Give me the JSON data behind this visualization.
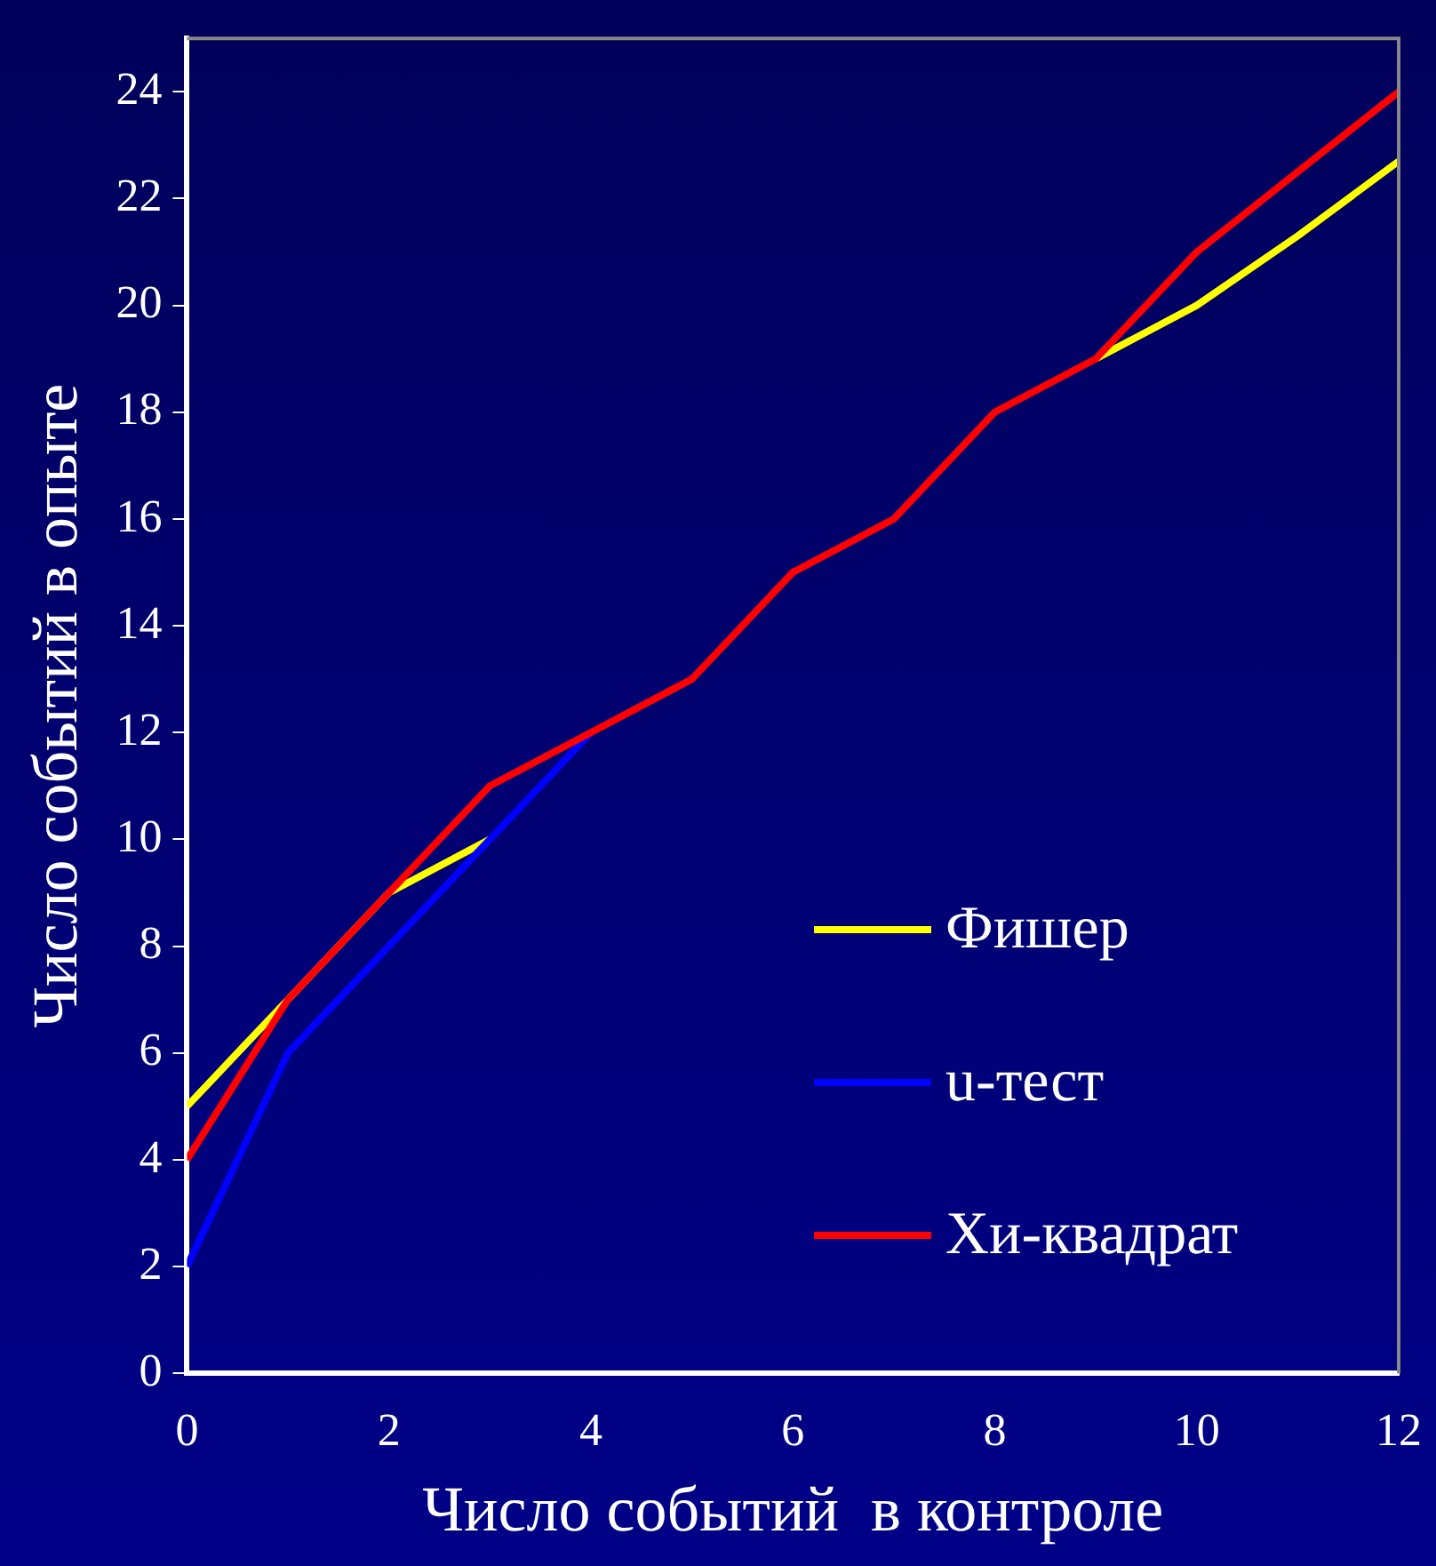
{
  "chart_data": {
    "type": "line",
    "xlabel": "Число событий  в контроле",
    "ylabel": "Число событий в опыте",
    "x": [
      0,
      1,
      2,
      3,
      4,
      5,
      6,
      7,
      8,
      9,
      10,
      11,
      12
    ],
    "series": [
      {
        "name": "Фишер",
        "color": "#ffff00",
        "values": [
          5,
          7,
          9,
          10,
          null,
          null,
          null,
          null,
          null,
          19,
          20,
          21.3,
          22.7
        ]
      },
      {
        "name": "u-тест",
        "color": "#0000ff",
        "values": [
          2,
          6,
          8,
          10,
          12,
          null,
          null,
          null,
          null,
          null,
          null,
          null,
          null
        ]
      },
      {
        "name": "Хи-квадрат",
        "color": "#ff0000",
        "values": [
          4,
          7,
          9,
          11,
          12,
          13,
          15,
          16,
          18,
          19,
          21,
          22.5,
          24
        ]
      }
    ],
    "xlim": [
      0,
      12
    ],
    "xticks": [
      0,
      2,
      4,
      6,
      8,
      10,
      12
    ],
    "ylim": [
      0,
      25
    ],
    "yticks": [
      0,
      2,
      4,
      6,
      8,
      10,
      12,
      14,
      16,
      18,
      20,
      22,
      24
    ],
    "grid": false,
    "legend": "bottom right",
    "marker": "none",
    "line_style": "solid"
  }
}
